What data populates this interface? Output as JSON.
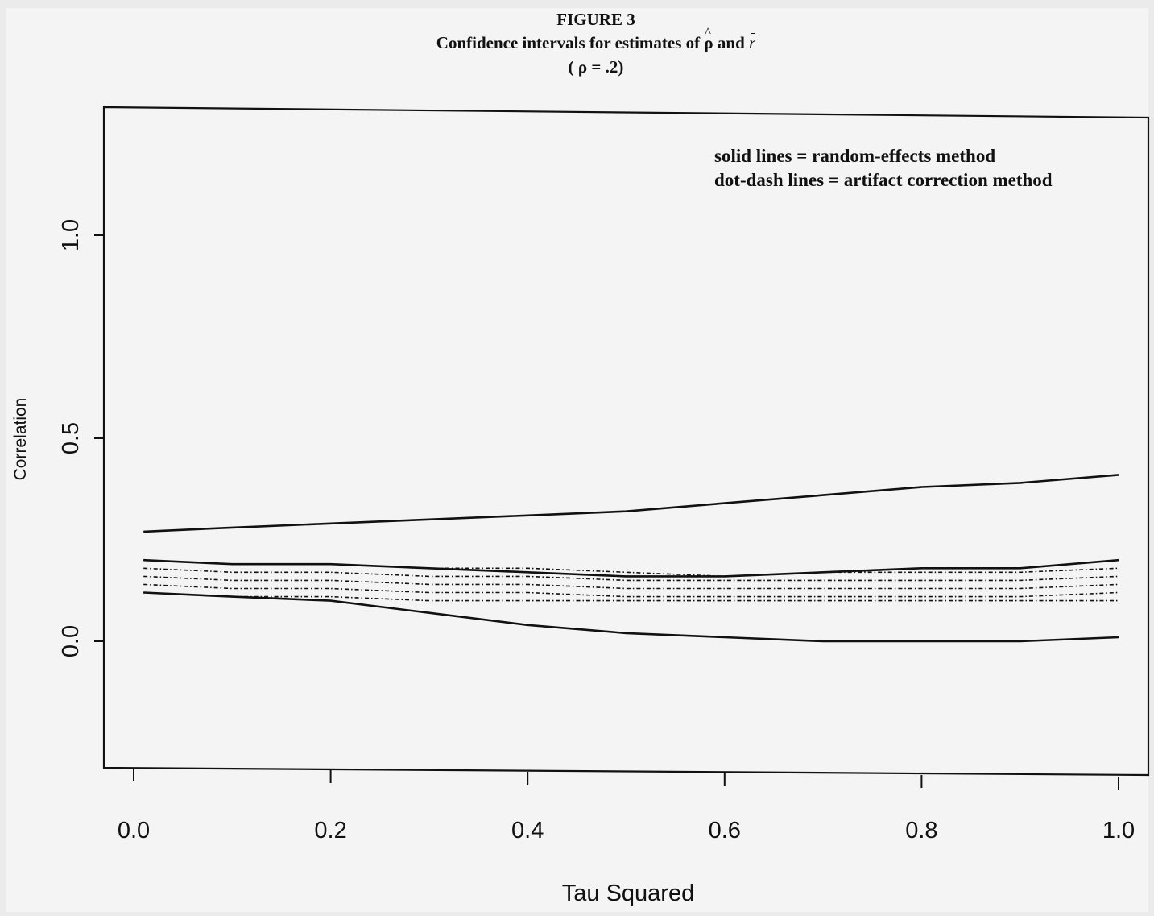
{
  "figure": {
    "number": "FIGURE 3",
    "title_prefix": "Confidence intervals for estimates of ",
    "title_rho": "ρ",
    "title_and": " and ",
    "title_r": "r",
    "subtitle": "( ρ = .2)"
  },
  "chart_data": {
    "type": "line",
    "xlabel": "Tau Squared",
    "ylabel": "Correlation",
    "xlim": [
      0.0,
      1.0
    ],
    "ylim": [
      -0.3,
      1.3
    ],
    "x_ticks": [
      "0.0",
      "0.2",
      "0.4",
      "0.6",
      "0.8",
      "1.0"
    ],
    "y_ticks": [
      "0.0",
      "0.5",
      "1.0"
    ],
    "grid": false,
    "legend_position": "top-right",
    "legend": [
      "solid lines = random-effects method",
      "dot-dash lines = artifact correction method"
    ],
    "x": [
      0.01,
      0.1,
      0.2,
      0.3,
      0.4,
      0.5,
      0.6,
      0.7,
      0.8,
      0.9,
      1.0
    ],
    "series": [
      {
        "style": "solid",
        "values": [
          0.27,
          0.28,
          0.29,
          0.3,
          0.31,
          0.32,
          0.34,
          0.36,
          0.38,
          0.39,
          0.41
        ]
      },
      {
        "style": "solid",
        "values": [
          0.2,
          0.19,
          0.19,
          0.18,
          0.17,
          0.16,
          0.16,
          0.17,
          0.18,
          0.18,
          0.2
        ]
      },
      {
        "style": "solid",
        "values": [
          0.12,
          0.11,
          0.1,
          0.07,
          0.04,
          0.02,
          0.01,
          0.0,
          0.0,
          0.0,
          0.01
        ]
      },
      {
        "style": "dotdash",
        "values": [
          0.2,
          0.19,
          0.19,
          0.18,
          0.18,
          0.17,
          0.16,
          0.17,
          0.17,
          0.17,
          0.18
        ]
      },
      {
        "style": "dotdash",
        "values": [
          0.18,
          0.17,
          0.17,
          0.16,
          0.16,
          0.15,
          0.15,
          0.15,
          0.15,
          0.15,
          0.16
        ]
      },
      {
        "style": "dotdash",
        "values": [
          0.16,
          0.15,
          0.15,
          0.14,
          0.14,
          0.13,
          0.13,
          0.13,
          0.13,
          0.13,
          0.14
        ]
      },
      {
        "style": "dotdash",
        "values": [
          0.14,
          0.13,
          0.13,
          0.12,
          0.12,
          0.11,
          0.11,
          0.11,
          0.11,
          0.11,
          0.12
        ]
      },
      {
        "style": "dotdash",
        "values": [
          0.12,
          0.11,
          0.11,
          0.1,
          0.1,
          0.1,
          0.1,
          0.1,
          0.1,
          0.1,
          0.1
        ]
      }
    ]
  }
}
